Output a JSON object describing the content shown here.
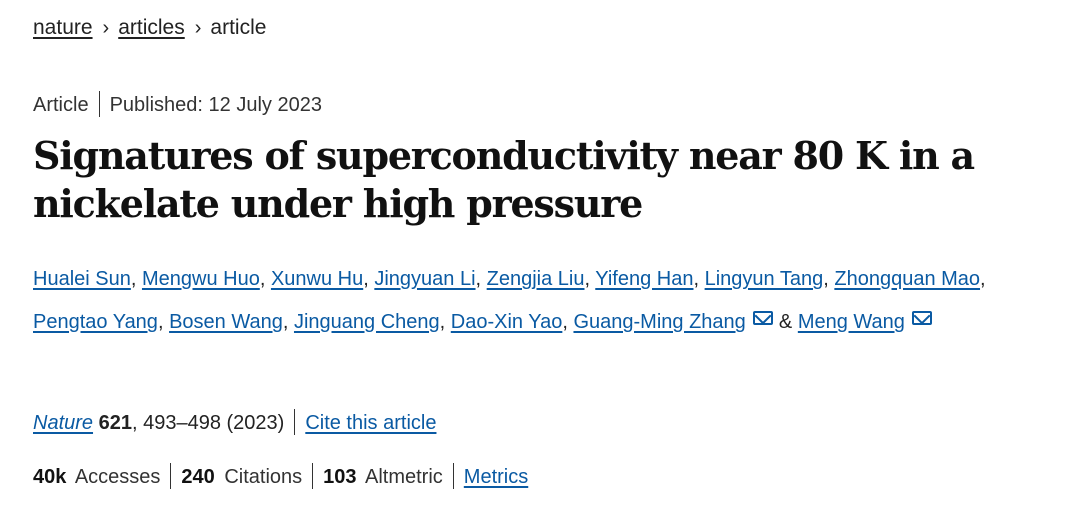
{
  "breadcrumb": {
    "items": [
      "nature",
      "articles",
      "article"
    ],
    "separator": "›"
  },
  "meta": {
    "type": "Article",
    "published": "Published: 12 July 2023"
  },
  "title": {
    "line1": "Signatures of superconductivity near 80  K in a",
    "line2": "nickelate under high pressure"
  },
  "authors": {
    "list": [
      "Hualei Sun",
      "Mengwu Huo",
      "Xunwu Hu",
      "Jingyuan Li",
      "Zengjia Liu",
      "Yifeng Han",
      "Lingyun Tang",
      "Zhongquan Mao",
      "Pengtao Yang",
      "Bosen Wang",
      "Jinguang Cheng",
      "Dao-Xin Yao",
      "Guang-Ming Zhang",
      "Meng Wang"
    ],
    "ampersand": "&",
    "comma": ","
  },
  "journal": {
    "name": "Nature",
    "volume": "621",
    "pages_year": ", 493–498 (2023)",
    "cite_label": "Cite this article"
  },
  "metrics": {
    "accesses_value": "40k",
    "accesses_label": "Accesses",
    "citations_value": "240",
    "citations_label": "Citations",
    "altmetric_value": "103",
    "altmetric_label": "Altmetric",
    "metrics_link": "Metrics"
  },
  "colors": {
    "link": "#0a5aa3",
    "text": "#222222"
  },
  "icons": {
    "corresponding_author": "mail-icon"
  }
}
